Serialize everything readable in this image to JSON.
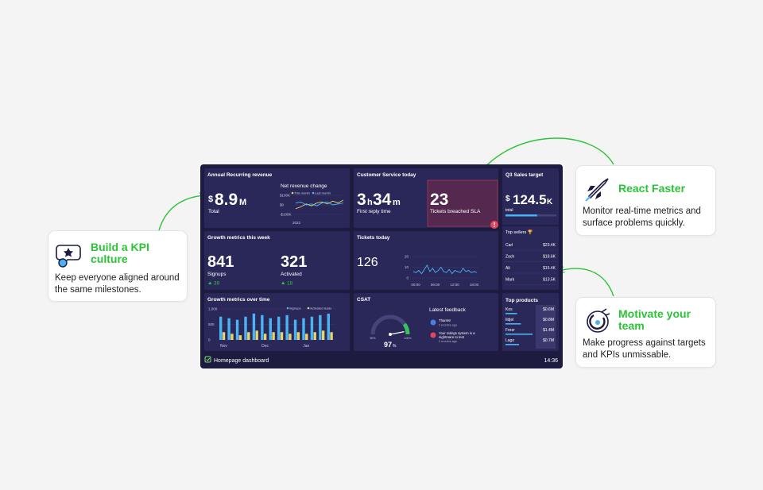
{
  "callouts": [
    {
      "title": "Build a KPI culture",
      "text": "Keep everyone aligned around the same milestones."
    },
    {
      "title": "React Faster",
      "text": "Monitor real-time metrics and surface problems quickly."
    },
    {
      "title": "Motivate your team",
      "text": "Make progress against targets and KPIs unmissable."
    }
  ],
  "dashboard": {
    "arr": {
      "title": "Annual Recurring revenue",
      "prefix": "$",
      "value": 8.9,
      "suffix": "M",
      "label": "Total",
      "chart": {
        "title": "Net revenue change",
        "series": [
          {
            "name": "This month",
            "color": "#e8d36c",
            "values": [
              -40000,
              -20000,
              10000,
              -10000,
              20000,
              30000,
              10000,
              40000,
              20000,
              50000
            ]
          },
          {
            "name": "Last month",
            "color": "#4ab3f4",
            "values": [
              20000,
              30000,
              0,
              10000,
              -10000,
              20000,
              30000,
              0,
              10000,
              20000
            ]
          }
        ],
        "ylim": [
          -150000,
          150000
        ],
        "yticks": [
          {
            "value": 100000,
            "label": "$100K"
          },
          {
            "value": 0,
            "label": "$0"
          },
          {
            "value": -100000,
            "label": "-$100K"
          }
        ],
        "xlabel": "2022"
      }
    },
    "cs": {
      "title": "Customer Service today",
      "reply": {
        "hours": 3,
        "h": "h",
        "minutes": 34,
        "m": "m",
        "label": "First reply time"
      },
      "breached": {
        "value": 23,
        "label": "Tickets breached SLA"
      }
    },
    "sales": {
      "title": "Q3 Sales target",
      "prefix": "$",
      "value": 124.5,
      "suffix": "K",
      "label": "total",
      "progress": 62,
      "sellers_title": "Top sellers 🏆",
      "sellers": [
        {
          "name": "Carl",
          "value": "$23.4K"
        },
        {
          "name": "Zach",
          "value": "$18.6K"
        },
        {
          "name": "Ali",
          "value": "$15.4K"
        },
        {
          "name": "Mark",
          "value": "$13.5K"
        }
      ]
    },
    "week": {
      "title": "Growth metrics this week",
      "metrics": [
        {
          "value": 841,
          "label": "Signups",
          "change": 39
        },
        {
          "value": 321,
          "label": "Activated",
          "change": 18
        }
      ]
    },
    "tickets": {
      "title": "Tickets today",
      "value": 126,
      "ylim": [
        0,
        20
      ],
      "yticks": [
        0,
        10,
        20
      ],
      "xticks": [
        "00:00",
        "06:00",
        "12:00",
        "18:00"
      ],
      "values": [
        6,
        5,
        7,
        4,
        8,
        12,
        6,
        9,
        5,
        7,
        10,
        6,
        5,
        8,
        4,
        7,
        6,
        5,
        9,
        6,
        7,
        5,
        6,
        5
      ]
    },
    "growth": {
      "title": "Growth metrics over time",
      "categories": [
        "Nov",
        null,
        null,
        null,
        null,
        "Dec",
        null,
        null,
        null,
        null,
        "Jan",
        null,
        null,
        null
      ],
      "series": [
        {
          "name": "Signups",
          "color": "#4ab3f4",
          "values": [
            750,
            700,
            650,
            750,
            850,
            800,
            700,
            750,
            800,
            650,
            700,
            750,
            800,
            850
          ]
        },
        {
          "name": "Activated leads",
          "color": "#e8d36c",
          "values": [
            250,
            200,
            150,
            250,
            300,
            200,
            250,
            250,
            200,
            250,
            200,
            250,
            300,
            250
          ]
        }
      ],
      "ylim": [
        0,
        1000
      ],
      "yticks": [
        {
          "value": 1000,
          "label": "1,000"
        },
        500,
        0
      ]
    },
    "csat": {
      "title": "CSAT",
      "value": 97,
      "unit": "%",
      "ticks": [
        {
          "value": 50,
          "label": "50%"
        },
        {
          "value": 100,
          "label": "100%"
        }
      ],
      "feedback_title": "Latest feedback",
      "feedback": [
        {
          "lines": [
            "Thanks!"
          ],
          "time": "2 months ago"
        },
        {
          "lines": [
            "Your ratings system is a",
            "nightmare to test"
          ],
          "time": "2 months ago"
        }
      ]
    },
    "products": {
      "title": "Top products",
      "items": [
        {
          "name": "Kos",
          "value": 0.6,
          "label": "$0.6M"
        },
        {
          "name": "Ildjel",
          "value": 0.8,
          "label": "$0.8M"
        },
        {
          "name": "Frezr",
          "value": 1.4,
          "label": "$1.4M"
        },
        {
          "name": "Lago",
          "value": 0.7,
          "label": "$0.7M"
        }
      ]
    },
    "footer": {
      "name": "Homepage dashboard",
      "time": "14:36"
    }
  }
}
